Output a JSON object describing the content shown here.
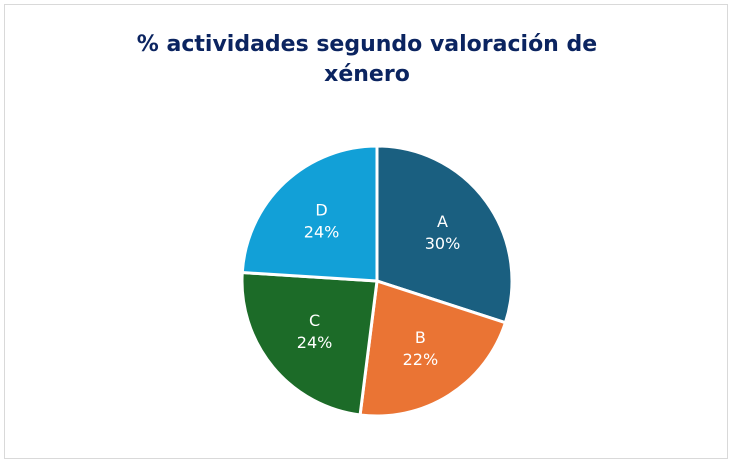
{
  "chart_data": {
    "type": "pie",
    "title": "% actividades segundo valoración de xénero",
    "categories": [
      "A",
      "B",
      "C",
      "D"
    ],
    "values": [
      30,
      22,
      24,
      24
    ],
    "value_labels": [
      "30%",
      "22%",
      "24%",
      "24%"
    ],
    "colors": [
      "#1a5f80",
      "#ea7434",
      "#1c6b28",
      "#12a0d7"
    ]
  }
}
